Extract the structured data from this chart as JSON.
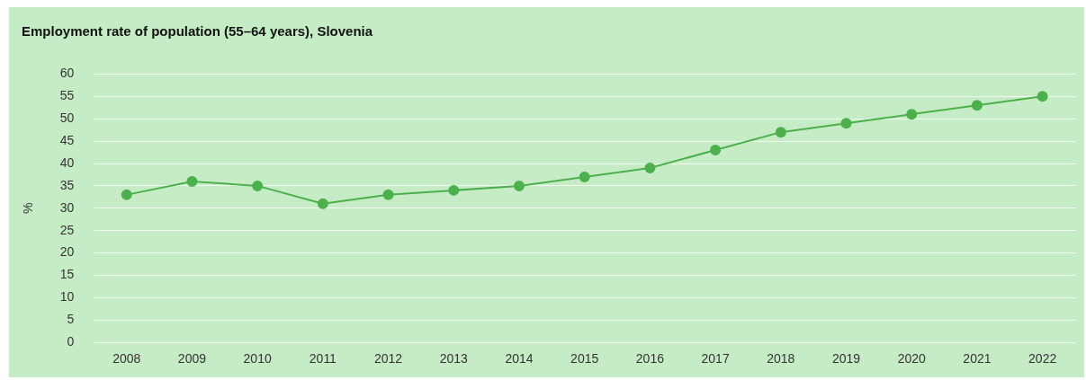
{
  "chart_data": {
    "type": "line",
    "title": "Employment rate of population (55–64 years), Slovenia",
    "ylabel": "%",
    "categories": [
      "2008",
      "2009",
      "2010",
      "2011",
      "2012",
      "2013",
      "2014",
      "2015",
      "2016",
      "2017",
      "2018",
      "2019",
      "2020",
      "2021",
      "2022"
    ],
    "series": [
      {
        "color": "#4cb04c",
        "values": [
          33,
          36,
          35,
          31,
          33,
          34,
          35,
          37,
          39,
          43,
          47,
          49,
          51,
          53,
          55
        ]
      }
    ],
    "ylim": [
      0,
      60
    ],
    "yticks": [
      0,
      5,
      10,
      15,
      20,
      25,
      30,
      35,
      40,
      45,
      50,
      55,
      60
    ],
    "grid": "y",
    "legend": false,
    "marker": "circle",
    "line_style": "solid"
  }
}
